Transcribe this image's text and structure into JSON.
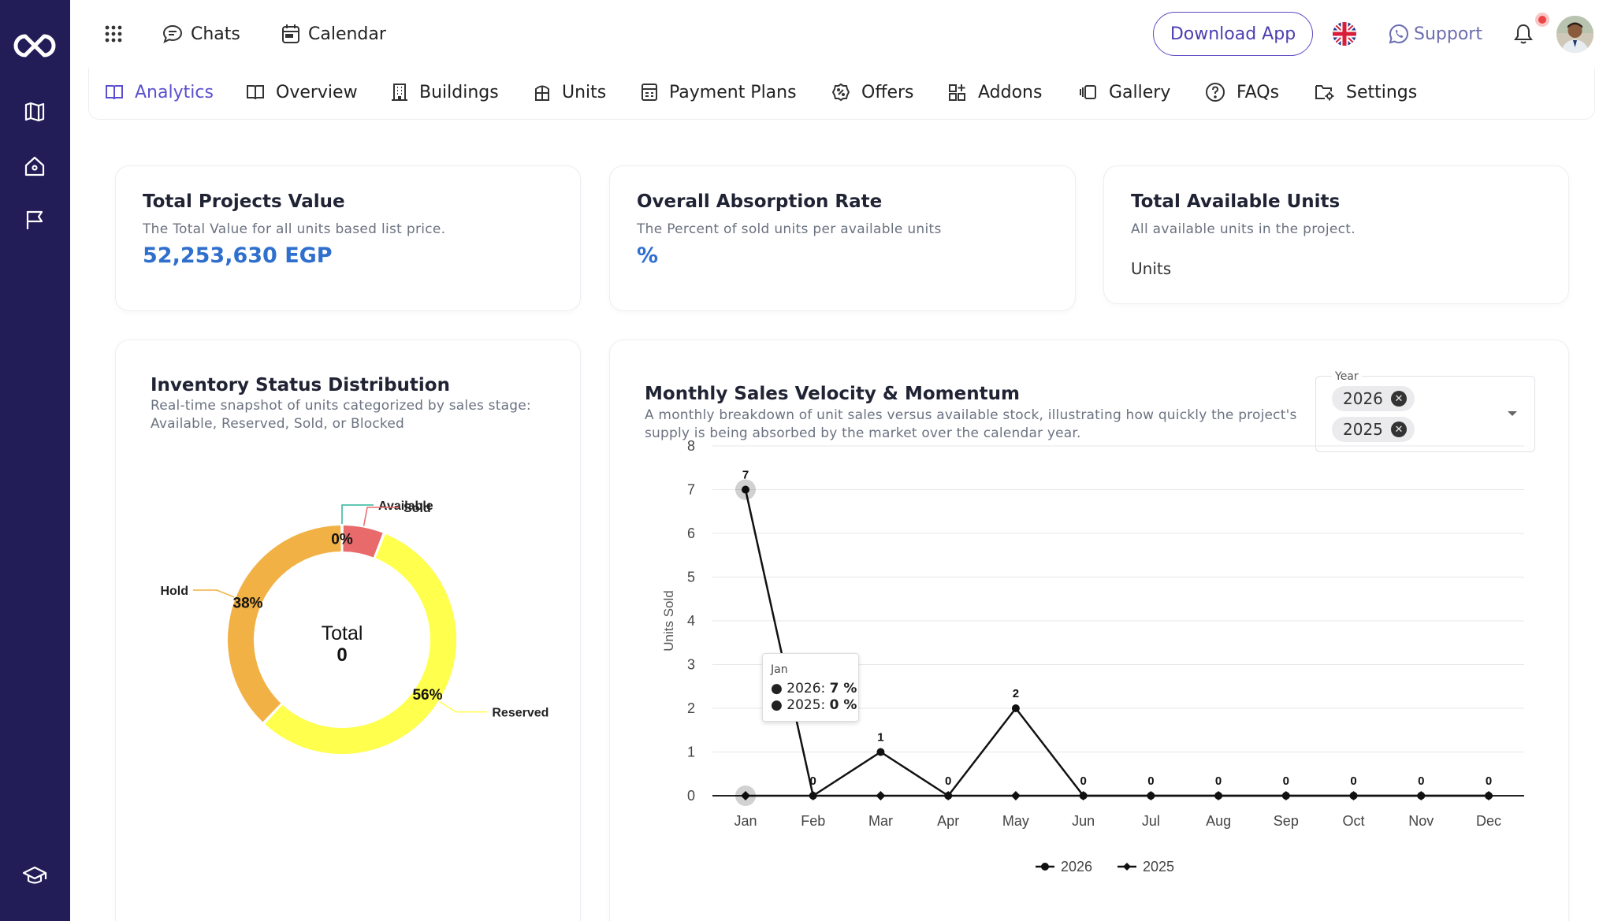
{
  "topbar": {
    "chats": "Chats",
    "calendar": "Calendar",
    "download_app": "Download App",
    "support": "Support"
  },
  "tabs": [
    {
      "label": "Analytics",
      "icon": "book-open-icon"
    },
    {
      "label": "Overview",
      "icon": "book-icon"
    },
    {
      "label": "Buildings",
      "icon": "building-icon"
    },
    {
      "label": "Units",
      "icon": "unit-icon"
    },
    {
      "label": "Payment Plans",
      "icon": "payment-plans-icon"
    },
    {
      "label": "Offers",
      "icon": "offer-badge-icon"
    },
    {
      "label": "Addons",
      "icon": "addons-grid-icon"
    },
    {
      "label": "Gallery",
      "icon": "gallery-icon"
    },
    {
      "label": "FAQs",
      "icon": "question-icon"
    },
    {
      "label": "Settings",
      "icon": "folder-settings-icon"
    }
  ],
  "kpis": {
    "total_value": {
      "title": "Total Projects Value",
      "subtitle": "The Total Value for all units based list price.",
      "value": "52,253,630 EGP"
    },
    "absorption": {
      "title": "Overall Absorption Rate",
      "subtitle": "The Percent of sold units per available units",
      "value": "%"
    },
    "available_units": {
      "title": "Total Available Units",
      "subtitle": "All available units in the project.",
      "value": "Units"
    }
  },
  "inventory": {
    "title": "Inventory Status Distribution",
    "subtitle_line1": "Real-time snapshot of units categorized by sales stage:",
    "subtitle_line2": "Available, Reserved, Sold, or Blocked",
    "center_label": "Total",
    "center_value": "0"
  },
  "sales": {
    "title": "Monthly Sales Velocity & Momentum",
    "subtitle_line1": "A monthly breakdown of unit sales versus available stock, illustrating how quickly the project's",
    "subtitle_line2": "supply is being absorbed by the market over the calendar year.",
    "year_filter": {
      "label": "Year",
      "selected": [
        "2026",
        "2025"
      ]
    },
    "tooltip": {
      "title": "Jan",
      "rows": [
        {
          "series": "2026",
          "value": "7 %"
        },
        {
          "series": "2025",
          "value": "0 %"
        }
      ]
    }
  },
  "colors": {
    "sidebar": "#221c57",
    "accent": "#5a4fcf",
    "value_blue": "#2f6fce",
    "available": "#2fb59a",
    "sold": "#e86a6a",
    "hold": "#f2b144",
    "reserved": "#ffff4d"
  },
  "chart_data": [
    {
      "type": "pie",
      "title": "Inventory Status Distribution",
      "center_label": "Total",
      "center_value": "0",
      "slices": [
        {
          "label": "Available",
          "value": 0,
          "display": "0%",
          "color": "#2fb59a"
        },
        {
          "label": "Sold",
          "value": 6,
          "display": "",
          "color": "#e86a6a"
        },
        {
          "label": "Reserved",
          "value": 56,
          "display": "56%",
          "color": "#ffff4d"
        },
        {
          "label": "Hold",
          "value": 38,
          "display": "38%",
          "color": "#f2b144"
        }
      ]
    },
    {
      "type": "line",
      "title": "Monthly Sales Velocity & Momentum",
      "xlabel": "",
      "ylabel": "Units Sold",
      "ylim": [
        0,
        8
      ],
      "yticks": [
        0,
        1,
        2,
        3,
        4,
        5,
        6,
        7,
        8
      ],
      "grid": true,
      "legend": "bottom-center",
      "categories": [
        "Jan",
        "Feb",
        "Mar",
        "Apr",
        "May",
        "Jun",
        "Jul",
        "Aug",
        "Sep",
        "Oct",
        "Nov",
        "Dec"
      ],
      "series": [
        {
          "name": "2026",
          "marker": "circle",
          "values": [
            7,
            0,
            1,
            0,
            2,
            0,
            0,
            0,
            0,
            0,
            0,
            0
          ]
        },
        {
          "name": "2025",
          "marker": "diamond",
          "values": [
            0,
            0,
            0,
            0,
            0,
            0,
            0,
            0,
            0,
            0,
            0,
            0
          ]
        }
      ]
    }
  ]
}
